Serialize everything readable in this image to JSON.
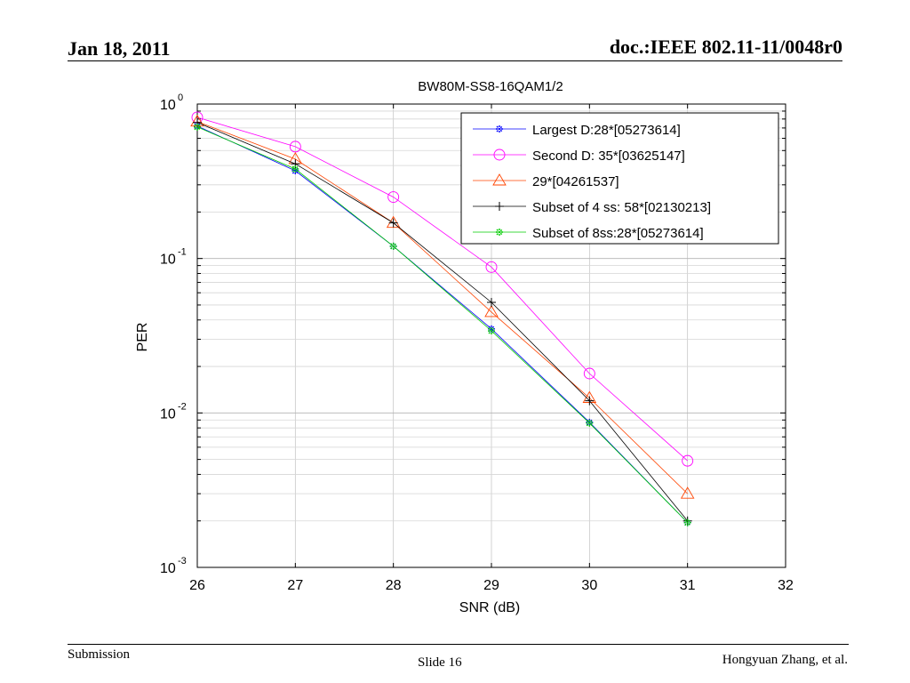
{
  "header": {
    "date": "Jan 18, 2011",
    "doc_id": "doc.:IEEE 802.11-11/0048r0"
  },
  "footer": {
    "left": "Submission",
    "center": "Slide 16",
    "right": "Hongyuan Zhang, et al."
  },
  "chart_data": {
    "type": "line",
    "title": "BW80M-SS8-16QAM1/2",
    "xlabel": "SNR (dB)",
    "ylabel": "PER",
    "xlim": [
      26,
      32
    ],
    "ylim": [
      0.001,
      1
    ],
    "yscale": "log",
    "grid": true,
    "legend_position": "top-right",
    "x_ticks": [
      "26",
      "27",
      "28",
      "29",
      "30",
      "31",
      "32"
    ],
    "y_ticks": [
      {
        "base": "10",
        "exp": "0"
      },
      {
        "base": "10",
        "exp": "-1"
      },
      {
        "base": "10",
        "exp": "-2"
      },
      {
        "base": "10",
        "exp": "-3"
      }
    ],
    "x": [
      26,
      27,
      28,
      29,
      30,
      31
    ],
    "series": [
      {
        "name": "Largest D:28*[05273614]",
        "color": "#0000ff",
        "marker": "star",
        "values": [
          0.72,
          0.37,
          0.12,
          0.035,
          0.0087,
          0.00195
        ]
      },
      {
        "name": "Second D: 35*[03625147]",
        "color": "#ff00ff",
        "marker": "circle",
        "values": [
          0.82,
          0.53,
          0.25,
          0.088,
          0.018,
          0.0049
        ]
      },
      {
        "name": "29*[04261537]",
        "color": "#ff4400",
        "marker": "triangle",
        "values": [
          0.77,
          0.44,
          0.17,
          0.045,
          0.0125,
          0.003
        ]
      },
      {
        "name": "Subset of 4 ss: 58*[02130213]",
        "color": "#000000",
        "marker": "plus",
        "values": [
          0.76,
          0.41,
          0.17,
          0.052,
          0.012,
          0.002
        ]
      },
      {
        "name": "Subset of 8ss:28*[05273614]",
        "color": "#00cc00",
        "marker": "star",
        "values": [
          0.71,
          0.38,
          0.12,
          0.034,
          0.0086,
          0.00195
        ]
      }
    ]
  }
}
